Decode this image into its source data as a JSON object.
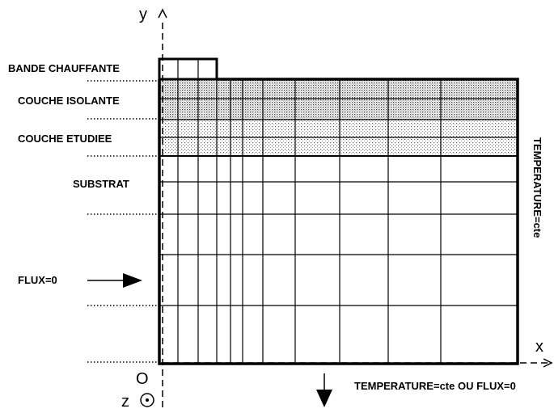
{
  "axes": {
    "y": "y",
    "x": "x",
    "z": "z",
    "origin": "O"
  },
  "layers": {
    "heater": "BANDE CHAUFFANTE",
    "insulating": "COUCHE ISOLANTE",
    "studied": "COUCHE ETUDIEE",
    "substrate": "SUBSTRAT"
  },
  "boundaries": {
    "left": "FLUX=0",
    "right": "TEMPERATURE=cte",
    "bottom": "TEMPERATURE=cte OU FLUX=0"
  }
}
